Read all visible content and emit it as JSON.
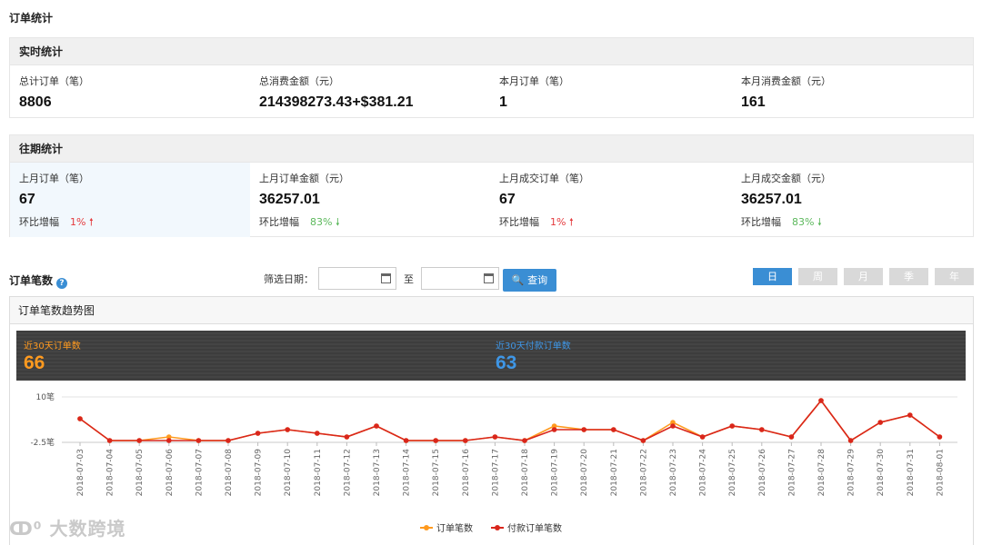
{
  "page_title": "订单统计",
  "realtime": {
    "title": "实时统计",
    "items": [
      {
        "label": "总计订单（笔）",
        "value": "8806"
      },
      {
        "label": "总消费金额（元）",
        "value": "214398273.43+$381.21"
      },
      {
        "label": "本月订单（笔）",
        "value": "1"
      },
      {
        "label": "本月消费金额（元）",
        "value": "161"
      }
    ]
  },
  "history": {
    "title": "往期统计",
    "change_label": "环比增幅",
    "items": [
      {
        "label": "上月订单（笔）",
        "value": "67",
        "change": "1%",
        "arrow": "🠕",
        "dir": "up"
      },
      {
        "label": "上月订单金额（元）",
        "value": "36257.01",
        "change": "83%",
        "arrow": "🠗",
        "dir": "down"
      },
      {
        "label": "上月成交订单（笔）",
        "value": "67",
        "change": "1%",
        "arrow": "🠕",
        "dir": "up"
      },
      {
        "label": "上月成交金额（元）",
        "value": "36257.01",
        "change": "83%",
        "arrow": "🠗",
        "dir": "down"
      }
    ]
  },
  "orders_section": {
    "title": "订单笔数",
    "help_icon": "question-circle-icon",
    "help_glyph": "?",
    "filter_label": "筛选日期：",
    "start_date": "",
    "end_date": "",
    "to_label": "至",
    "query_label": "🔍 查询",
    "periods": [
      "日",
      "周",
      "月",
      "季",
      "年"
    ],
    "active_period": "日"
  },
  "chart_panel": {
    "title": "订单笔数趋势图",
    "stat_left_label": "近30天订单数",
    "stat_left_value": "66",
    "stat_right_label": "近30天付款订单数",
    "stat_right_value": "63"
  },
  "colors": {
    "orange": "#ff9a1f",
    "red": "#d9261c",
    "blue": "#3a8ed4",
    "up": "#e4393c",
    "down": "#5cb85c"
  },
  "chart_data": {
    "type": "line",
    "x": [
      "2018-07-03",
      "2018-07-04",
      "2018-07-05",
      "2018-07-06",
      "2018-07-07",
      "2018-07-08",
      "2018-07-09",
      "2018-07-10",
      "2018-07-11",
      "2018-07-12",
      "2018-07-13",
      "2018-07-14",
      "2018-07-15",
      "2018-07-16",
      "2018-07-17",
      "2018-07-18",
      "2018-07-19",
      "2018-07-20",
      "2018-07-21",
      "2018-07-22",
      "2018-07-23",
      "2018-07-24",
      "2018-07-25",
      "2018-07-26",
      "2018-07-27",
      "2018-07-28",
      "2018-07-29",
      "2018-07-30",
      "2018-07-31",
      "2018-08-01"
    ],
    "series": [
      {
        "name": "订单笔数",
        "color": "#ff9a1f",
        "values": [
          4,
          -2,
          -2,
          -1,
          -2,
          -2,
          0,
          1,
          0,
          -1,
          2,
          -2,
          -2,
          -2,
          -1,
          -2,
          2,
          1,
          1,
          -2,
          3,
          -1,
          2,
          1,
          -1,
          9,
          -2,
          3,
          5,
          -1
        ]
      },
      {
        "name": "付款订单笔数",
        "color": "#d9261c",
        "values": [
          4,
          -2,
          -2,
          -2,
          -2,
          -2,
          0,
          1,
          0,
          -1,
          2,
          -2,
          -2,
          -2,
          -1,
          -2,
          1,
          1,
          1,
          -2,
          2,
          -1,
          2,
          1,
          -1,
          9,
          -2,
          3,
          5,
          -1
        ]
      }
    ],
    "y_ticks": [
      "10笔",
      "-2.5笔"
    ],
    "ylim": [
      -2.5,
      10
    ],
    "grid": true,
    "legend": "bottom-center"
  },
  "watermark": "大数跨境"
}
